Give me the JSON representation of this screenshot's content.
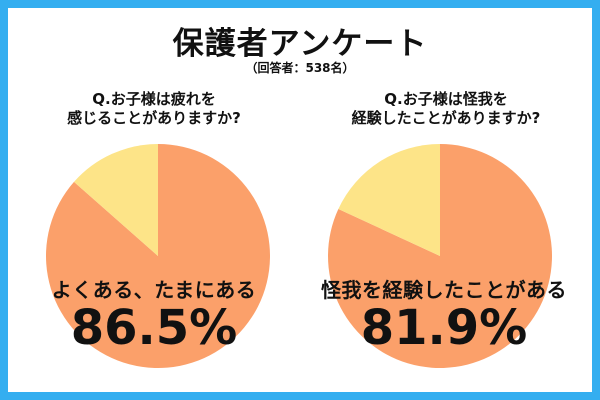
{
  "header": {
    "title": "保護者アンケート",
    "subtitle": "（回答者：538名）"
  },
  "colors": {
    "border": "#34aef0",
    "background": "#ffffff",
    "majority": "#fba06a",
    "minority": "#fde488",
    "text": "#111111"
  },
  "chart_data": [
    {
      "type": "pie",
      "question_line1": "Q.お子様は疲れを",
      "question_line2": "感じることがありますか?",
      "slices": [
        {
          "label": "よくある、たまにある",
          "value": 86.5,
          "value_label": "86.5%",
          "color": "#fba06a"
        },
        {
          "label": "",
          "value": 13.5,
          "color": "#fde488"
        }
      ]
    },
    {
      "type": "pie",
      "question_line1": "Q.お子様は怪我を",
      "question_line2": "経験したことがありますか?",
      "slices": [
        {
          "label": "怪我を経験したことがある",
          "value": 81.9,
          "value_label": "81.9%",
          "color": "#fba06a"
        },
        {
          "label": "",
          "value": 18.1,
          "color": "#fde488"
        }
      ]
    }
  ]
}
